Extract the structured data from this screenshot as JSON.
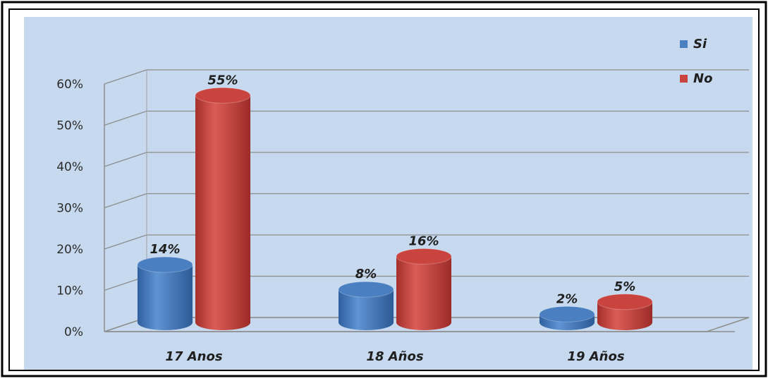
{
  "chart_data": {
    "type": "bar",
    "categories": [
      "17 Anos",
      "18 Años",
      "19 Años"
    ],
    "series": [
      {
        "name": "Si",
        "values": [
          14,
          8,
          2
        ],
        "labels": [
          "14%",
          "8%",
          "2%"
        ]
      },
      {
        "name": "No",
        "values": [
          55,
          16,
          5
        ],
        "labels": [
          "55%",
          "16%",
          "5%"
        ]
      }
    ],
    "ylim": [
      0,
      60
    ],
    "yticks": [
      "0%",
      "10%",
      "20%",
      "30%",
      "40%",
      "50%",
      "60%"
    ],
    "grid": true,
    "legend_position": "top-right",
    "style": "3d-cylinder",
    "colors": {
      "Si": "#4a7fc1",
      "No": "#c9443f",
      "plot_background": "#c6d9ee"
    }
  }
}
